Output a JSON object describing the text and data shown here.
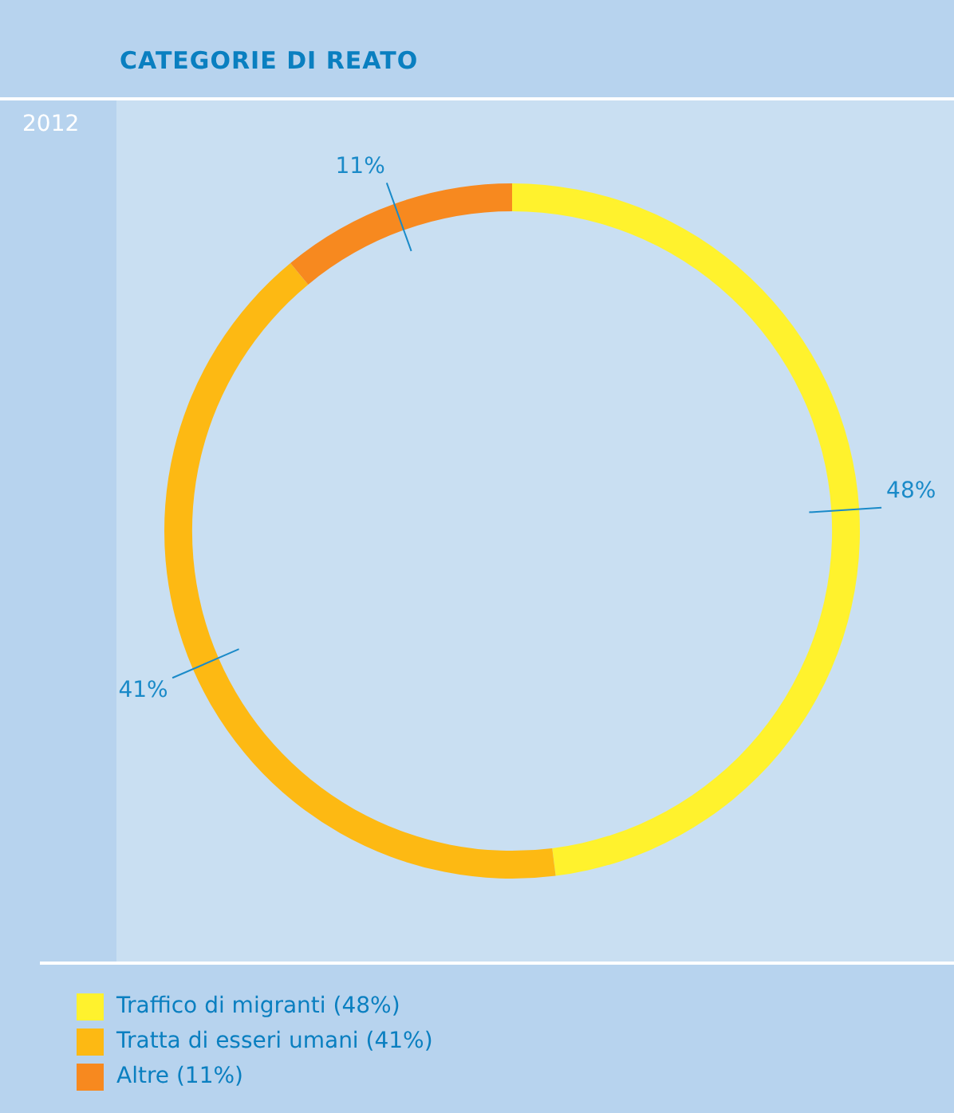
{
  "chart_data": {
    "type": "donut",
    "title": "CATEGORIE DI REATO",
    "subtitle": "2012",
    "categories": [
      "Traffico di migranti (48%)",
      "Tratta di esseri umani (41%)",
      "Altre (11%)"
    ],
    "values": [
      48,
      41,
      11
    ],
    "colors": [
      "#fff22d",
      "#fdb913",
      "#f7891f"
    ],
    "value_labels": [
      "48%",
      "41%",
      "11%"
    ],
    "legend": "bottom"
  }
}
